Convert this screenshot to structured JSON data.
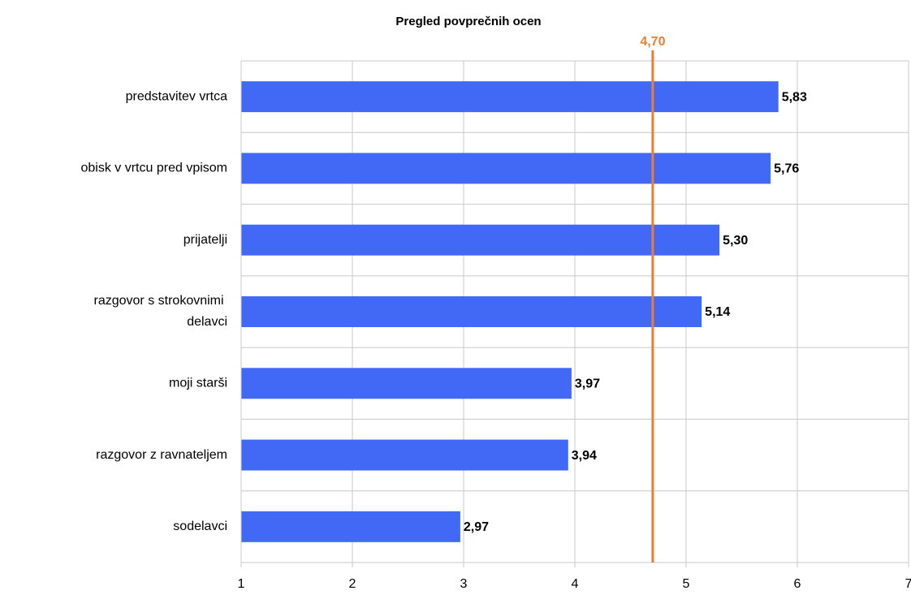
{
  "chart_data": {
    "type": "barh",
    "title": "Pregled povprečnih ocen",
    "categories": [
      "predstavitev vrtca",
      "obisk v vrtcu pred vpisom",
      "prijatelji",
      "razgovor s strokovnimi delavci",
      "moji starši",
      "razgovor z ravnateljem",
      "sodelavci"
    ],
    "values": [
      5.83,
      5.76,
      5.3,
      5.14,
      3.97,
      3.94,
      2.97
    ],
    "value_labels": [
      "5,83",
      "5,76",
      "5,30",
      "5,14",
      "3,97",
      "3,94",
      "2,97"
    ],
    "color": "#4169f5",
    "xlim": [
      1,
      7
    ],
    "xticks": [
      1,
      2,
      3,
      4,
      5,
      6,
      7
    ],
    "grid": true,
    "reference": {
      "value": 4.7,
      "label": "4,70",
      "color": "#ed7d31"
    }
  }
}
